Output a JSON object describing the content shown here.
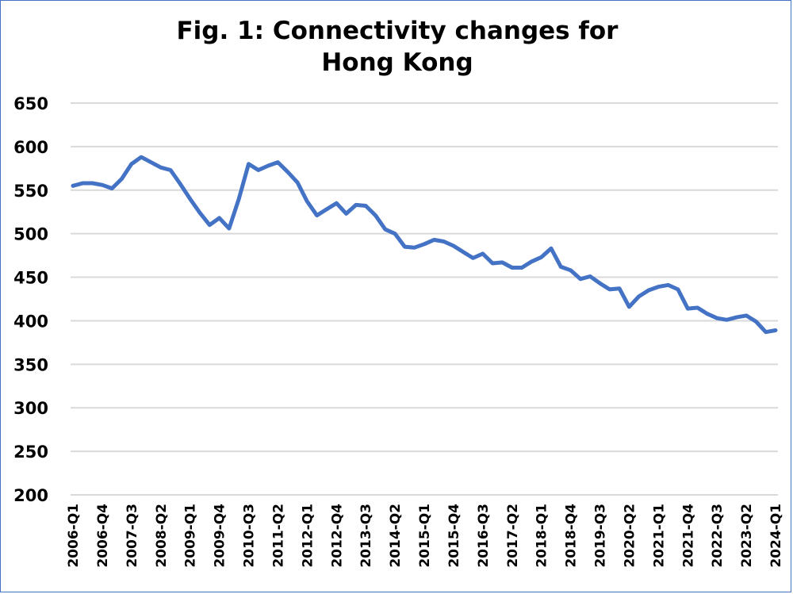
{
  "chart_data": {
    "type": "line",
    "title_lines": [
      "Fig. 1: Connectivity changes for",
      "Hong Kong"
    ],
    "xlabel": "",
    "ylabel": "",
    "ylim": [
      200,
      650
    ],
    "yticks": [
      200,
      250,
      300,
      350,
      400,
      450,
      500,
      550,
      600,
      650
    ],
    "grid": true,
    "legend": "none",
    "line_color": "#4472c4",
    "grid_color": "#d9d9d9",
    "x_tick_labels": [
      "2006-Q1",
      "2006-Q4",
      "2007-Q3",
      "2008-Q2",
      "2009-Q1",
      "2009-Q4",
      "2010-Q3",
      "2011-Q2",
      "2012-Q1",
      "2012-Q4",
      "2013-Q3",
      "2014-Q2",
      "2015-Q1",
      "2015-Q4",
      "2016-Q3",
      "2017-Q2",
      "2018-Q1",
      "2018-Q4",
      "2019-Q3",
      "2020-Q2",
      "2021-Q1",
      "2021-Q4",
      "2022-Q3",
      "2023-Q2",
      "2024-Q1"
    ],
    "x_tick_every": 3,
    "series": [
      {
        "values": [
          555,
          558,
          558,
          556,
          552,
          563,
          580,
          588,
          582,
          576,
          573,
          557,
          540,
          524,
          510,
          518,
          506,
          540,
          580,
          573,
          578,
          582,
          571,
          559,
          537,
          521,
          528,
          535,
          523,
          533,
          532,
          521,
          505,
          500,
          485,
          484,
          488,
          493,
          491,
          486,
          479,
          472,
          477,
          466,
          467,
          461,
          461,
          468,
          473,
          483,
          462,
          458,
          448,
          451,
          443,
          436,
          437,
          416,
          428,
          435,
          439,
          441,
          436,
          414,
          415,
          408,
          403,
          401,
          404,
          406,
          399,
          387,
          389
        ]
      }
    ]
  }
}
